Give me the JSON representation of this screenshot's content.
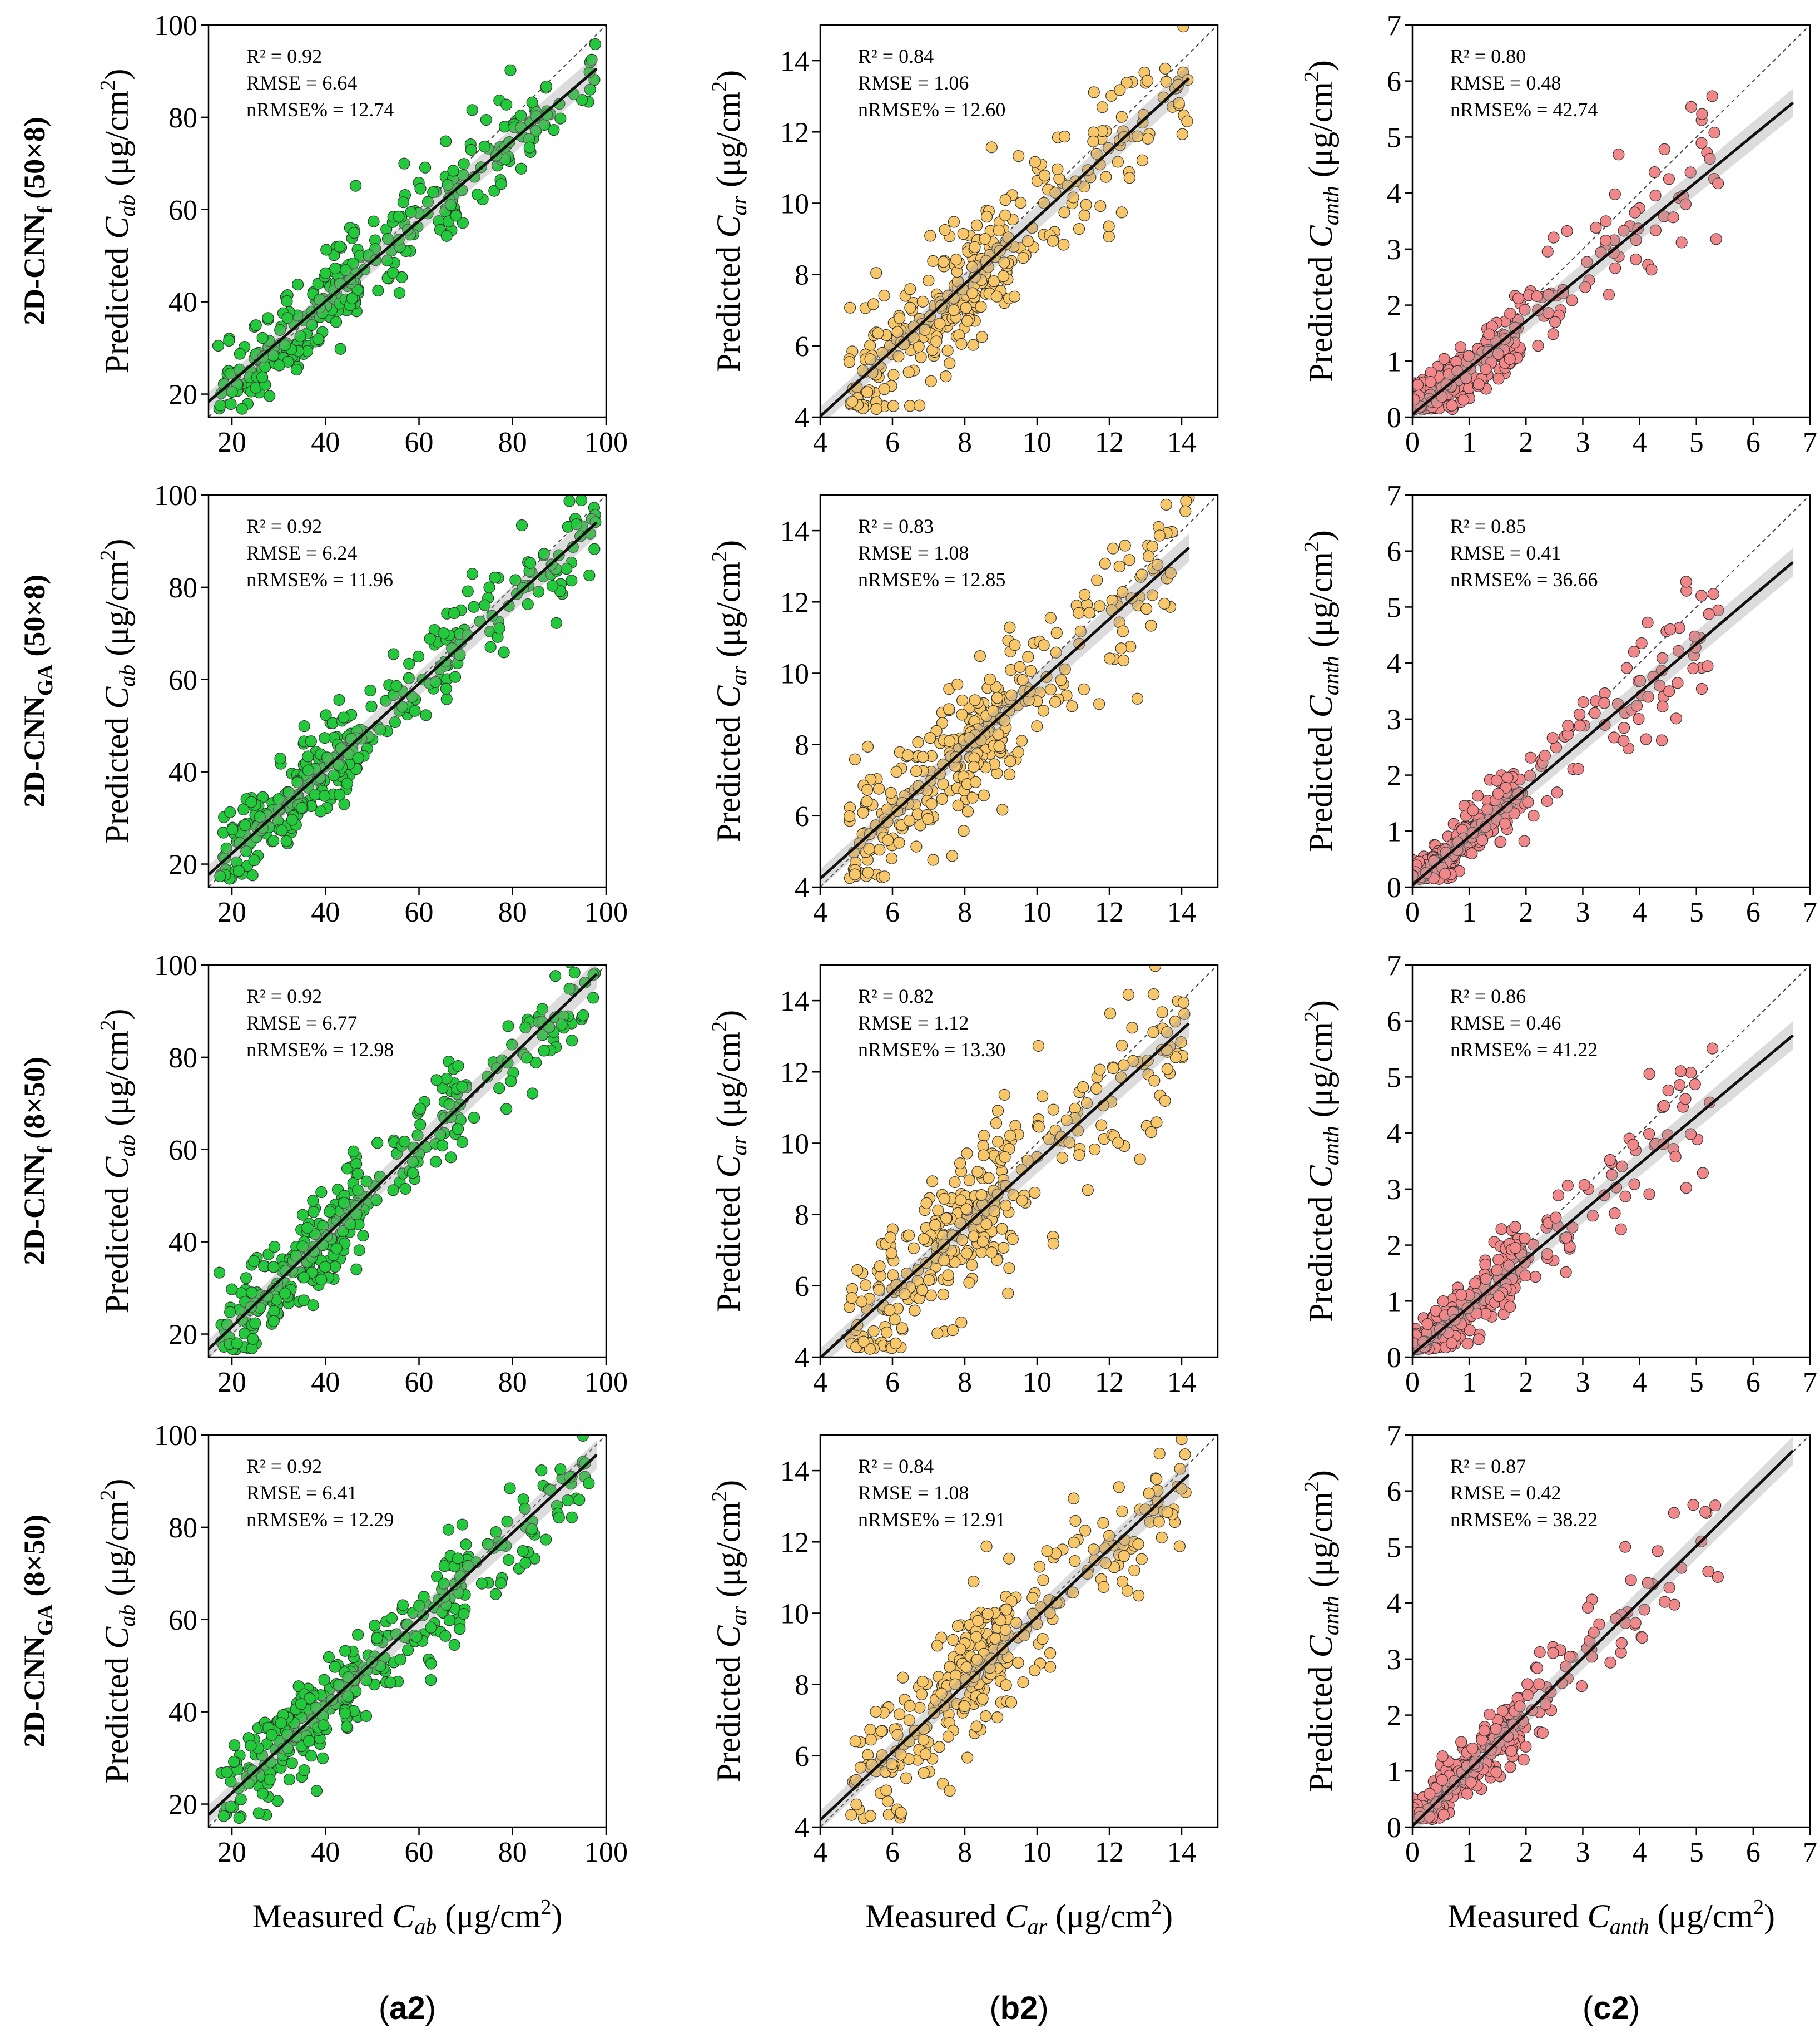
{
  "figure": {
    "row_labels": [
      {
        "base": "2D-CNN",
        "sub": "f",
        "suffix": " (50×8)"
      },
      {
        "base": "2D-CNN",
        "sub": "GA",
        "suffix": " (50×8)"
      },
      {
        "base": "2D-CNN",
        "sub": "f",
        "suffix": " (8×50)"
      },
      {
        "base": "2D-CNN",
        "sub": "GA",
        "suffix": " (8×50)"
      }
    ],
    "columns": [
      {
        "panel_label": "a2",
        "var": "ab",
        "ylabel_prefix": "Predicted ",
        "xlabel_prefix": "Measured ",
        "unit": " (μg/cm",
        "unit_sup": "2",
        "unit_close": ")",
        "color": "#22c93a"
      },
      {
        "panel_label": "b2",
        "var": "ar",
        "ylabel_prefix": "Predicted ",
        "xlabel_prefix": "Measured ",
        "unit": " (μg/cm",
        "unit_sup": "2",
        "unit_close": ")",
        "color": "#f7c76a"
      },
      {
        "panel_label": "c2",
        "var": "anth",
        "ylabel_prefix": "Predicted ",
        "xlabel_prefix": "Measured ",
        "unit": " (μg/cm",
        "unit_sup": "2",
        "unit_close": ")",
        "color": "#f2878a"
      }
    ]
  },
  "chart_data": [
    {
      "type": "scatter",
      "row": 0,
      "col": 0,
      "xlim": [
        15,
        100
      ],
      "ylim": [
        15,
        100
      ],
      "xticks": [
        20,
        40,
        60,
        80,
        100
      ],
      "yticks": [
        20,
        40,
        60,
        80,
        100
      ],
      "r2": "R² = 0.92",
      "rmse": "RMSE = 6.64",
      "nrmse": "nRMSE% = 12.74",
      "fit": {
        "slope": 0.87,
        "intercept": 5.3
      },
      "seed": 11,
      "noise": 5.2
    },
    {
      "type": "scatter",
      "row": 0,
      "col": 1,
      "xlim": [
        4,
        15
      ],
      "ylim": [
        4,
        15
      ],
      "xticks": [
        4,
        6,
        8,
        10,
        12,
        14
      ],
      "yticks": [
        4,
        6,
        8,
        10,
        12,
        14
      ],
      "r2": "R² = 0.84",
      "rmse": "RMSE = 1.06",
      "nrmse": "nRMSE% = 12.60",
      "fit": {
        "slope": 0.93,
        "intercept": 0.3
      },
      "seed": 21,
      "noise": 0.95
    },
    {
      "type": "scatter",
      "row": 0,
      "col": 2,
      "xlim": [
        0,
        7
      ],
      "ylim": [
        0,
        7
      ],
      "xticks": [
        0,
        1,
        2,
        3,
        4,
        5,
        6,
        7
      ],
      "yticks": [
        0,
        1,
        2,
        3,
        4,
        5,
        6,
        7
      ],
      "r2": "R² =  0.80",
      "rmse": "RMSE = 0.48",
      "nrmse": "nRMSE% = 42.74",
      "fit": {
        "slope": 0.83,
        "intercept": 0.05
      },
      "seed": 31,
      "noise": 0.38
    },
    {
      "type": "scatter",
      "row": 1,
      "col": 0,
      "xlim": [
        15,
        100
      ],
      "ylim": [
        15,
        100
      ],
      "xticks": [
        20,
        40,
        60,
        80,
        100
      ],
      "yticks": [
        20,
        40,
        60,
        80,
        100
      ],
      "r2": "R² = 0.92",
      "rmse": "RMSE = 6.24",
      "nrmse": "nRMSE% = 11.96",
      "fit": {
        "slope": 0.92,
        "intercept": 3.9
      },
      "seed": 12,
      "noise": 5.0
    },
    {
      "type": "scatter",
      "row": 1,
      "col": 1,
      "xlim": [
        4,
        15
      ],
      "ylim": [
        4,
        15
      ],
      "xticks": [
        4,
        6,
        8,
        10,
        12,
        14
      ],
      "yticks": [
        4,
        6,
        8,
        10,
        12,
        14
      ],
      "r2": "R² = 0.83",
      "rmse": "RMSE = 1.08",
      "nrmse": "nRMSE% = 12.85",
      "fit": {
        "slope": 0.91,
        "intercept": 0.6
      },
      "seed": 22,
      "noise": 0.98
    },
    {
      "type": "scatter",
      "row": 1,
      "col": 2,
      "xlim": [
        0,
        7
      ],
      "ylim": [
        0,
        7
      ],
      "xticks": [
        0,
        1,
        2,
        3,
        4,
        5,
        6,
        7
      ],
      "yticks": [
        0,
        1,
        2,
        3,
        4,
        5,
        6,
        7
      ],
      "r2": "R² =  0.85",
      "rmse": "RMSE = 0.41",
      "nrmse": "nRMSE% = 36.66",
      "fit": {
        "slope": 0.86,
        "intercept": 0.04
      },
      "seed": 32,
      "noise": 0.33
    },
    {
      "type": "scatter",
      "row": 2,
      "col": 0,
      "xlim": [
        15,
        100
      ],
      "ylim": [
        15,
        100
      ],
      "xticks": [
        20,
        40,
        60,
        80,
        100
      ],
      "yticks": [
        20,
        40,
        60,
        80,
        100
      ],
      "r2": "R² = 0.92",
      "rmse": "RMSE = 6.77",
      "nrmse": "nRMSE% = 12.98",
      "fit": {
        "slope": 0.98,
        "intercept": 2.0
      },
      "seed": 13,
      "noise": 5.4
    },
    {
      "type": "scatter",
      "row": 2,
      "col": 1,
      "xlim": [
        4,
        15
      ],
      "ylim": [
        4,
        15
      ],
      "xticks": [
        4,
        6,
        8,
        10,
        12,
        14
      ],
      "yticks": [
        4,
        6,
        8,
        10,
        12,
        14
      ],
      "r2": "R² = 0.82",
      "rmse": "RMSE = 1.12",
      "nrmse": "nRMSE% = 13.30",
      "fit": {
        "slope": 0.92,
        "intercept": 0.3
      },
      "seed": 23,
      "noise": 1.02
    },
    {
      "type": "scatter",
      "row": 2,
      "col": 2,
      "xlim": [
        0,
        7
      ],
      "ylim": [
        0,
        7
      ],
      "xticks": [
        0,
        1,
        2,
        3,
        4,
        5,
        6,
        7
      ],
      "yticks": [
        0,
        1,
        2,
        3,
        4,
        5,
        6,
        7
      ],
      "r2": "R² =  0.86",
      "rmse": "RMSE = 0.46",
      "nrmse": "nRMSE% = 41.22",
      "fit": {
        "slope": 0.85,
        "intercept": 0.05
      },
      "seed": 33,
      "noise": 0.37
    },
    {
      "type": "scatter",
      "row": 3,
      "col": 0,
      "xlim": [
        15,
        100
      ],
      "ylim": [
        15,
        100
      ],
      "xticks": [
        20,
        40,
        60,
        80,
        100
      ],
      "yticks": [
        20,
        40,
        60,
        80,
        100
      ],
      "r2": "R² = 0.92",
      "rmse": "RMSE = 6.41",
      "nrmse": "nRMSE% = 12.29",
      "fit": {
        "slope": 0.94,
        "intercept": 3.6
      },
      "seed": 14,
      "noise": 5.1
    },
    {
      "type": "scatter",
      "row": 3,
      "col": 1,
      "xlim": [
        4,
        15
      ],
      "ylim": [
        4,
        15
      ],
      "xticks": [
        4,
        6,
        8,
        10,
        12,
        14
      ],
      "yticks": [
        4,
        6,
        8,
        10,
        12,
        14
      ],
      "r2": "R² = 0.84",
      "rmse": "RMSE = 1.08",
      "nrmse": "nRMSE% = 12.91",
      "fit": {
        "slope": 0.95,
        "intercept": 0.4
      },
      "seed": 24,
      "noise": 0.97
    },
    {
      "type": "scatter",
      "row": 3,
      "col": 2,
      "xlim": [
        0,
        7
      ],
      "ylim": [
        0,
        7
      ],
      "xticks": [
        0,
        1,
        2,
        3,
        4,
        5,
        6,
        7
      ],
      "yticks": [
        0,
        1,
        2,
        3,
        4,
        5,
        6,
        7
      ],
      "r2": "R² =  0.87",
      "rmse": "RMSE = 0.42",
      "nrmse": "nRMSE% = 38.22",
      "fit": {
        "slope": 1.0,
        "intercept": 0.02
      },
      "seed": 34,
      "noise": 0.34
    }
  ]
}
